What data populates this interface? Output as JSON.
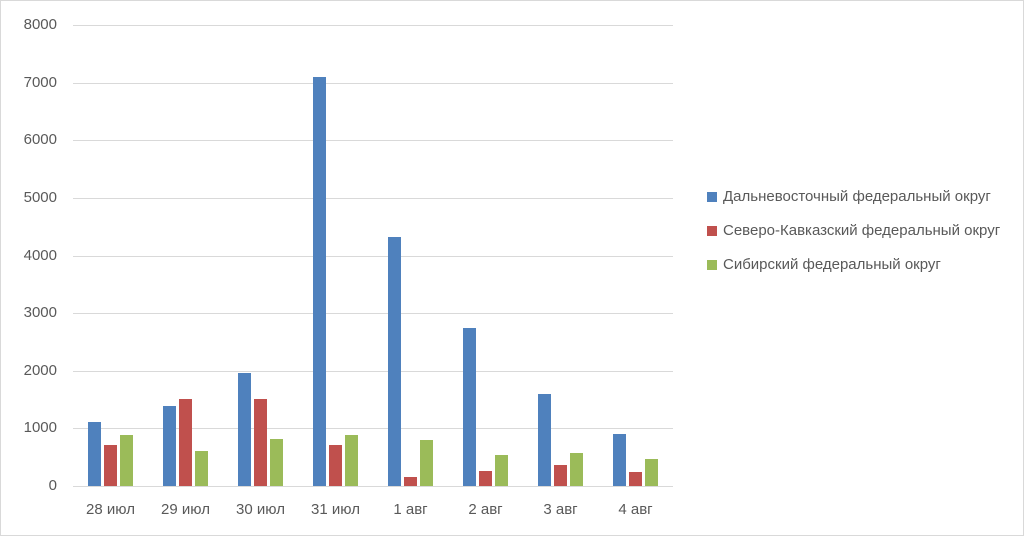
{
  "chart_data": {
    "type": "bar",
    "title": "",
    "xlabel": "",
    "ylabel": "",
    "categories": [
      "28 июл",
      "29 июл",
      "30 июл",
      "31 июл",
      "1 авг",
      "2 авг",
      "3 авг",
      "4 авг"
    ],
    "series": [
      {
        "name": "Дальневосточный федеральный округ",
        "color": "#4f81bd",
        "values": [
          1115,
          1380,
          1953,
          7104,
          4318,
          2740,
          1600,
          906
        ]
      },
      {
        "name": "Северо-Кавказский федеральный округ",
        "color": "#c0504d",
        "values": [
          703,
          1502,
          1514,
          709,
          160,
          252,
          368,
          246
        ]
      },
      {
        "name": "Сибирский федеральный округ",
        "color": "#9bbb59",
        "values": [
          882,
          616,
          819,
          882,
          790,
          535,
          570,
          477
        ]
      }
    ],
    "ylim": [
      0,
      8000
    ],
    "yticks": [
      "0",
      "1000",
      "2000",
      "3000",
      "4000",
      "5000",
      "6000",
      "7000",
      "8000"
    ],
    "grid": true,
    "legend_position": "right"
  },
  "legend": {
    "items": [
      {
        "label": "Дальневосточный федеральный округ",
        "color": "#4f81bd"
      },
      {
        "label": "Северо-Кавказский федеральный округ",
        "color": "#c0504d"
      },
      {
        "label": "Сибирский федеральный округ",
        "color": "#9bbb59"
      }
    ]
  }
}
